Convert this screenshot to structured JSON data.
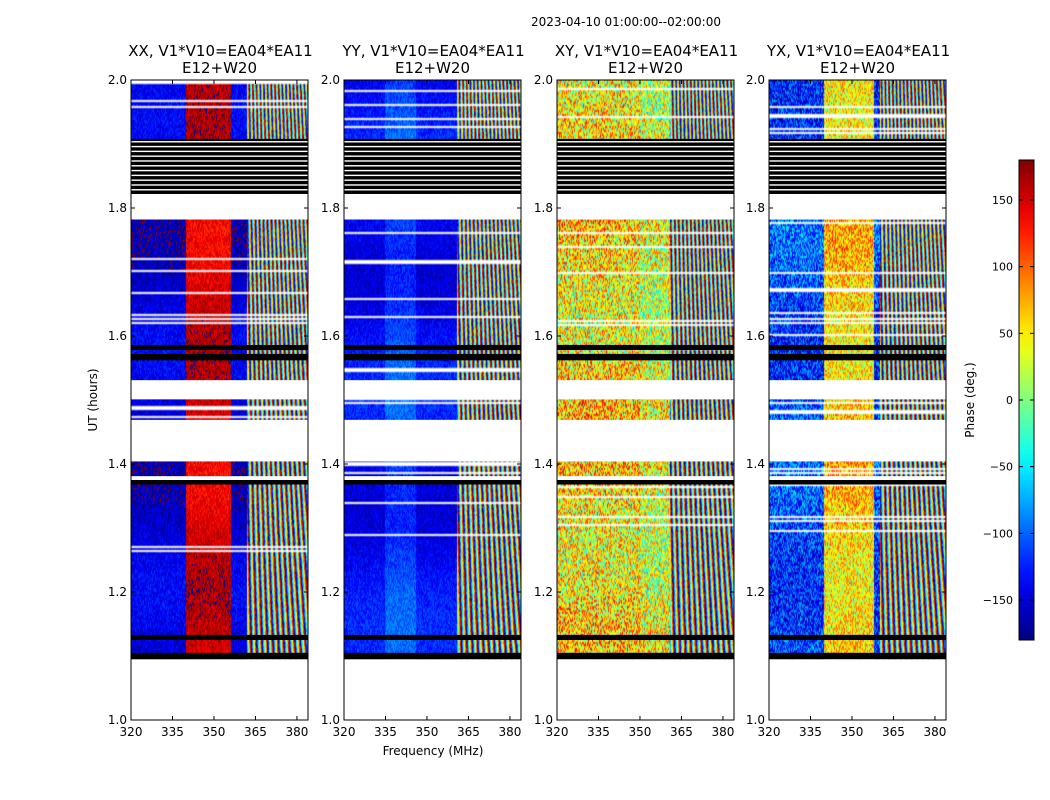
{
  "chart_data": {
    "type": "heatmap",
    "suptitle": "2023-04-10  01:00:00--02:00:00",
    "xlabel": "Frequency (MHz)",
    "ylabel": "UT (hours)",
    "xlim": [
      320,
      384
    ],
    "ylim": [
      1.0,
      2.0
    ],
    "xticks": [
      320,
      335,
      350,
      365,
      380
    ],
    "yticks": [
      1.0,
      1.2,
      1.4,
      1.6,
      1.8,
      2.0
    ],
    "panels": [
      {
        "title_line1": "XX, V1*V10=EA04*EA11",
        "title_line2": "E12+W20",
        "mean_phase": -150,
        "amp": 22,
        "band": {
          "f1": 340,
          "f2": 356,
          "shift": 300
        },
        "split_freq": 362
      },
      {
        "title_line1": "YY, V1*V10=EA04*EA11",
        "title_line2": "E12+W20",
        "mean_phase": -135,
        "amp": 20,
        "band": {
          "f1": 335,
          "f2": 346,
          "shift": 25
        },
        "split_freq": 361
      },
      {
        "title_line1": "XY, V1*V10=EA04*EA11",
        "title_line2": "E12+W20",
        "mean_phase": 35,
        "amp": 80,
        "band": {
          "f1": 320,
          "f2": 350,
          "shift": 20
        },
        "split_freq": 361
      },
      {
        "title_line1": "YX, V1*V10=EA04*EA11",
        "title_line2": "E12+W20",
        "mean_phase": -110,
        "amp": 55,
        "band": {
          "f1": 340,
          "f2": 358,
          "shift": 170
        },
        "split_freq": 360
      }
    ],
    "flag_blocks": [
      {
        "t0": 1.0,
        "t1": 1.095,
        "fill": "white"
      },
      {
        "t0": 1.095,
        "t1": 1.105,
        "fill": "black"
      },
      {
        "t0": 1.125,
        "t1": 1.133,
        "fill": "black"
      },
      {
        "t0": 1.368,
        "t1": 1.375,
        "fill": "black"
      },
      {
        "t0": 1.375,
        "t1": 1.381,
        "fill": "white"
      },
      {
        "t0": 1.404,
        "t1": 1.469,
        "fill": "white"
      },
      {
        "t0": 1.501,
        "t1": 1.531,
        "fill": "white"
      },
      {
        "t0": 1.562,
        "t1": 1.572,
        "fill": "black"
      },
      {
        "t0": 1.578,
        "t1": 1.586,
        "fill": "black"
      },
      {
        "t0": 1.782,
        "t1": 1.822,
        "fill": "white"
      },
      {
        "t0": 1.822,
        "t1": 1.908,
        "fill": "black"
      }
    ],
    "colorbar": {
      "label": "Phase (deg.)",
      "range": [
        -180,
        180
      ],
      "ticks": [
        150,
        100,
        50,
        0,
        -50,
        -100,
        -150
      ],
      "tick_labels": [
        "150",
        "100",
        "50",
        "0",
        "−50",
        "−100",
        "−150"
      ],
      "colormap": "jet"
    }
  }
}
